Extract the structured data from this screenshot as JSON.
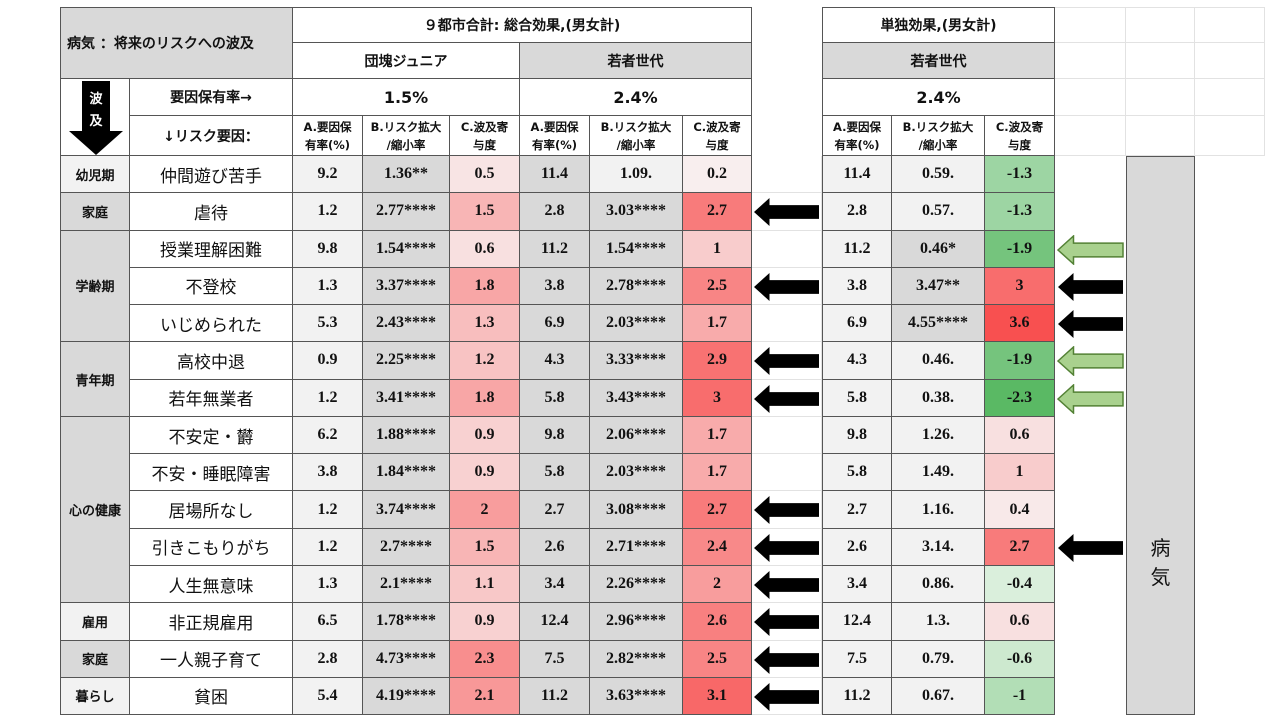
{
  "title": "病気 ：将来のリスクへの波及",
  "down_arrow_text": [
    "波",
    "及"
  ],
  "group_total": "９都市合計: 総合効果,(男女計)",
  "group_single": "単独効果,(男女計)",
  "gen_dankai": "団塊ジュニア",
  "gen_young": "若者世代",
  "gen_young2": "若者世代",
  "rate_label": "要因保有率→",
  "risk_label": "↓リスク要因：",
  "rate_dankai": "1.5%",
  "rate_young": "2.4%",
  "rate_young2": "2.4%",
  "col_a": "A.要因保有率(%)",
  "col_b": "B.リスク拡大/縮小率",
  "col_c": "C.波及寄与度",
  "col_a_lines": [
    "A.要因保",
    "有率(%)"
  ],
  "col_b_lines": [
    "B.リスク拡大",
    "/縮小率"
  ],
  "col_c_lines": [
    "C.波及寄",
    "与度"
  ],
  "side_label": [
    "病",
    "気"
  ],
  "stages": [
    "幼児期",
    "家庭",
    "学齢期",
    "青年期",
    "心の健康",
    "雇用",
    "家庭",
    "暮らし"
  ],
  "rows": [
    {
      "factor": "仲間遊び苦手",
      "a1": "9.2",
      "b1": "1.36**",
      "c1": "0.5",
      "a2": "11.4",
      "b2": "1.09.",
      "c2": "0.2",
      "a3": "11.4",
      "b3": "0.59.",
      "c3": "-1.3"
    },
    {
      "factor": "虐待",
      "a1": "1.2",
      "b1": "2.77****",
      "c1": "1.5",
      "a2": "2.8",
      "b2": "3.03****",
      "c2": "2.7",
      "a3": "2.8",
      "b3": "0.57.",
      "c3": "-1.3"
    },
    {
      "factor": "授業理解困難",
      "a1": "9.8",
      "b1": "1.54****",
      "c1": "0.6",
      "a2": "11.2",
      "b2": "1.54****",
      "c2": "1",
      "a3": "11.2",
      "b3": "0.46*",
      "c3": "-1.9"
    },
    {
      "factor": "不登校",
      "a1": "1.3",
      "b1": "3.37****",
      "c1": "1.8",
      "a2": "3.8",
      "b2": "2.78****",
      "c2": "2.5",
      "a3": "3.8",
      "b3": "3.47**",
      "c3": "3"
    },
    {
      "factor": "いじめられた",
      "a1": "5.3",
      "b1": "2.43****",
      "c1": "1.3",
      "a2": "6.9",
      "b2": "2.03****",
      "c2": "1.7",
      "a3": "6.9",
      "b3": "4.55****",
      "c3": "3.6"
    },
    {
      "factor": "高校中退",
      "a1": "0.9",
      "b1": "2.25****",
      "c1": "1.2",
      "a2": "4.3",
      "b2": "3.33****",
      "c2": "2.9",
      "a3": "4.3",
      "b3": "0.46.",
      "c3": "-1.9"
    },
    {
      "factor": "若年無業者",
      "a1": "1.2",
      "b1": "3.41****",
      "c1": "1.8",
      "a2": "5.8",
      "b2": "3.43****",
      "c2": "3",
      "a3": "5.8",
      "b3": "0.38.",
      "c3": "-2.3"
    },
    {
      "factor": "不安定・欝",
      "a1": "6.2",
      "b1": "1.88****",
      "c1": "0.9",
      "a2": "9.8",
      "b2": "2.06****",
      "c2": "1.7",
      "a3": "9.8",
      "b3": "1.26.",
      "c3": "0.6"
    },
    {
      "factor": "不安・睡眠障害",
      "a1": "3.8",
      "b1": "1.84****",
      "c1": "0.9",
      "a2": "5.8",
      "b2": "2.03****",
      "c2": "1.7",
      "a3": "5.8",
      "b3": "1.49.",
      "c3": "1"
    },
    {
      "factor": "居場所なし",
      "a1": "1.2",
      "b1": "3.74****",
      "c1": "2",
      "a2": "2.7",
      "b2": "3.08****",
      "c2": "2.7",
      "a3": "2.7",
      "b3": "1.16.",
      "c3": "0.4"
    },
    {
      "factor": "引きこもりがち",
      "a1": "1.2",
      "b1": "2.7****",
      "c1": "1.5",
      "a2": "2.6",
      "b2": "2.71****",
      "c2": "2.4",
      "a3": "2.6",
      "b3": "3.14.",
      "c3": "2.7"
    },
    {
      "factor": "人生無意味",
      "a1": "1.3",
      "b1": "2.1****",
      "c1": "1.1",
      "a2": "3.4",
      "b2": "2.26****",
      "c2": "2",
      "a3": "3.4",
      "b3": "0.86.",
      "c3": "-0.4"
    },
    {
      "factor": "非正規雇用",
      "a1": "6.5",
      "b1": "1.78****",
      "c1": "0.9",
      "a2": "12.4",
      "b2": "2.96****",
      "c2": "2.6",
      "a3": "12.4",
      "b3": "1.3.",
      "c3": "0.6"
    },
    {
      "factor": "一人親子育て",
      "a1": "2.8",
      "b1": "4.73****",
      "c1": "2.3",
      "a2": "7.5",
      "b2": "2.82****",
      "c2": "2.5",
      "a3": "7.5",
      "b3": "0.79.",
      "c3": "-0.6"
    },
    {
      "factor": "貧困",
      "a1": "5.4",
      "b1": "4.19****",
      "c1": "2.1",
      "a2": "11.2",
      "b2": "3.63****",
      "c2": "3.1",
      "a3": "11.2",
      "b3": "0.67.",
      "c3": "-1"
    }
  ],
  "arrows_total": [
    false,
    true,
    false,
    true,
    false,
    true,
    true,
    false,
    false,
    true,
    true,
    true,
    true,
    true,
    true
  ],
  "arrows_single": [
    "none",
    "none",
    "green",
    "black",
    "black",
    "green",
    "green",
    "none",
    "none",
    "none",
    "black",
    "none",
    "none",
    "none",
    "none"
  ],
  "colors": {
    "gray": "#d9d9d9",
    "light_gray": "#f2f2f2",
    "black_arrow": "#000000",
    "green_arrow_fill": "#a9d18e",
    "green_arrow_stroke": "#538135"
  }
}
